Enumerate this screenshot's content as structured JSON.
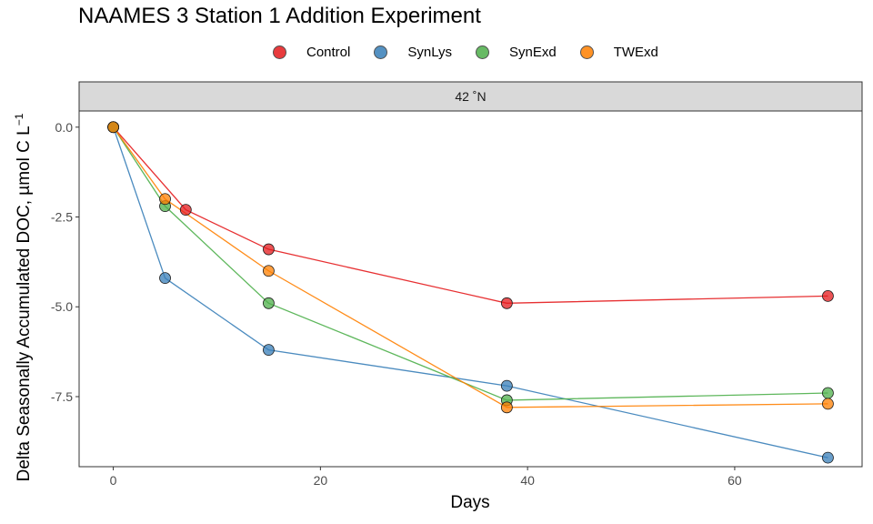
{
  "chart_data": {
    "type": "line",
    "title": "NAAMES 3 Station 1 Addition Experiment",
    "facet_label": "42 ˚N",
    "xlabel": "Days",
    "ylabel": "Delta Seasonally Accumulated DOC, µmol C L",
    "ylabel_superscript": "−1",
    "xlim": [
      -3.3,
      72.3
    ],
    "ylim": [
      -9.45,
      0.45
    ],
    "x_ticks": [
      0,
      20,
      40,
      60
    ],
    "y_ticks": [
      0,
      -2.5,
      -5,
      -7.5
    ],
    "y_tick_labels": [
      "0.0",
      "-2.5",
      "-5.0",
      "-7.5"
    ],
    "legend_position": "top",
    "grid": false,
    "series": [
      {
        "name": "Control",
        "color": "#E41A1C",
        "x": [
          0,
          7,
          15,
          38,
          69
        ],
        "y": [
          0,
          -2.3,
          -3.4,
          -4.9,
          -4.7
        ]
      },
      {
        "name": "SynLys",
        "color": "#377EB8",
        "x": [
          0,
          5,
          15,
          38,
          69
        ],
        "y": [
          0,
          -4.2,
          -6.2,
          -7.2,
          -9.2
        ]
      },
      {
        "name": "SynExd",
        "color": "#4DAF4A",
        "x": [
          0,
          5,
          15,
          38,
          69
        ],
        "y": [
          0,
          -2.2,
          -4.9,
          -7.6,
          -7.4
        ]
      },
      {
        "name": "TWExd",
        "color": "#FF7F00",
        "x": [
          0,
          5,
          15,
          38,
          69
        ],
        "y": [
          0,
          -2.0,
          -4.0,
          -7.8,
          -7.7
        ]
      }
    ]
  }
}
